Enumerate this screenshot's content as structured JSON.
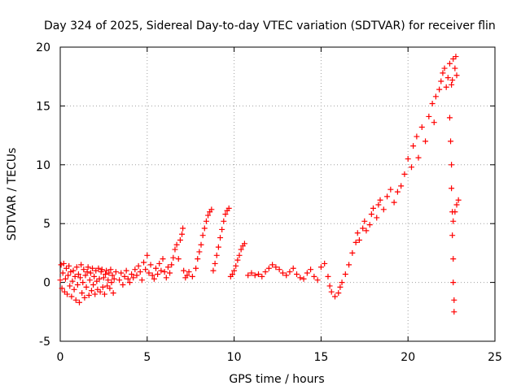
{
  "chart_data": {
    "type": "scatter",
    "title": "Day 324 of 2025, Sidereal Day-to-day VTEC variation (SDTVAR) for receiver flin",
    "xlabel": "GPS time / hours",
    "ylabel": "SDTVAR / TECUs",
    "xlim": [
      0,
      25
    ],
    "ylim": [
      -5,
      20
    ],
    "xticks": [
      0,
      5,
      10,
      15,
      20,
      25
    ],
    "yticks": [
      -5,
      0,
      5,
      10,
      15,
      20
    ],
    "grid": true,
    "marker": "+",
    "color": "#ff0000",
    "series": [
      {
        "points": [
          [
            0.0,
            0.2
          ],
          [
            0.05,
            1.5
          ],
          [
            0.1,
            -0.5
          ],
          [
            0.15,
            0.8
          ],
          [
            0.2,
            1.6
          ],
          [
            0.25,
            -0.8
          ],
          [
            0.3,
            0.3
          ],
          [
            0.35,
            1.2
          ],
          [
            0.4,
            -1.0
          ],
          [
            0.45,
            0.6
          ],
          [
            0.5,
            1.4
          ],
          [
            0.55,
            -0.3
          ],
          [
            0.6,
            0.9
          ],
          [
            0.65,
            -1.2
          ],
          [
            0.7,
            0.1
          ],
          [
            0.75,
            1.0
          ],
          [
            0.8,
            -0.6
          ],
          [
            0.85,
            0.5
          ],
          [
            0.9,
            -1.5
          ],
          [
            0.95,
            1.3
          ],
          [
            1.0,
            -0.2
          ],
          [
            1.05,
            0.7
          ],
          [
            1.1,
            -1.7
          ],
          [
            1.15,
            0.4
          ],
          [
            1.2,
            1.5
          ],
          [
            1.25,
            -0.9
          ],
          [
            1.3,
            0.0
          ],
          [
            1.35,
            1.1
          ],
          [
            1.4,
            -1.3
          ],
          [
            1.45,
            0.6
          ],
          [
            1.5,
            -0.4
          ],
          [
            1.55,
            0.9
          ],
          [
            1.6,
            1.3
          ],
          [
            1.65,
            -1.1
          ],
          [
            1.7,
            0.2
          ],
          [
            1.75,
            0.8
          ],
          [
            1.8,
            -0.7
          ],
          [
            1.85,
            1.2
          ],
          [
            1.9,
            -0.2
          ],
          [
            1.95,
            0.5
          ],
          [
            2.0,
            -1.0
          ],
          [
            2.05,
            1.0
          ],
          [
            2.1,
            0.1
          ],
          [
            2.15,
            -0.6
          ],
          [
            2.2,
            1.2
          ],
          [
            2.25,
            0.3
          ],
          [
            2.3,
            -0.8
          ],
          [
            2.35,
            0.9
          ],
          [
            2.4,
            1.1
          ],
          [
            2.45,
            -0.4
          ],
          [
            2.5,
            0.4
          ],
          [
            2.55,
            -1.0
          ],
          [
            2.6,
            0.7
          ],
          [
            2.65,
            1.0
          ],
          [
            2.7,
            -0.3
          ],
          [
            2.75,
            0.2
          ],
          [
            2.8,
            0.8
          ],
          [
            2.85,
            -0.5
          ],
          [
            2.9,
            1.1
          ],
          [
            2.95,
            0.0
          ],
          [
            3.0,
            0.6
          ],
          [
            3.05,
            -0.9
          ],
          [
            3.1,
            0.3
          ],
          [
            3.2,
            0.9
          ],
          [
            3.4,
            0.2
          ],
          [
            3.5,
            0.8
          ],
          [
            3.6,
            -0.2
          ],
          [
            3.7,
            0.5
          ],
          [
            3.8,
            1.0
          ],
          [
            3.9,
            0.3
          ],
          [
            4.0,
            0.0
          ],
          [
            4.1,
            0.7
          ],
          [
            4.2,
            0.4
          ],
          [
            4.3,
            1.1
          ],
          [
            4.4,
            0.6
          ],
          [
            4.5,
            1.4
          ],
          [
            4.6,
            0.9
          ],
          [
            4.7,
            0.2
          ],
          [
            4.8,
            1.7
          ],
          [
            4.9,
            1.1
          ],
          [
            5.0,
            2.3
          ],
          [
            5.1,
            0.8
          ],
          [
            5.2,
            1.5
          ],
          [
            5.3,
            0.6
          ],
          [
            5.4,
            0.3
          ],
          [
            5.5,
            1.2
          ],
          [
            5.6,
            0.7
          ],
          [
            5.7,
            1.6
          ],
          [
            5.8,
            1.0
          ],
          [
            5.9,
            2.0
          ],
          [
            6.0,
            0.9
          ],
          [
            6.1,
            0.4
          ],
          [
            6.2,
            1.3
          ],
          [
            6.3,
            0.8
          ],
          [
            6.4,
            1.5
          ],
          [
            6.5,
            2.1
          ],
          [
            6.6,
            2.8
          ],
          [
            6.7,
            3.2
          ],
          [
            6.8,
            2.0
          ],
          [
            6.9,
            3.6
          ],
          [
            7.0,
            4.1
          ],
          [
            7.05,
            4.6
          ],
          [
            7.1,
            1.0
          ],
          [
            7.2,
            0.4
          ],
          [
            7.3,
            0.6
          ],
          [
            7.4,
            0.9
          ],
          [
            7.6,
            0.5
          ],
          [
            7.8,
            1.2
          ],
          [
            7.9,
            2.0
          ],
          [
            8.0,
            2.6
          ],
          [
            8.1,
            3.2
          ],
          [
            8.2,
            4.0
          ],
          [
            8.3,
            4.6
          ],
          [
            8.4,
            5.2
          ],
          [
            8.5,
            5.7
          ],
          [
            8.6,
            6.0
          ],
          [
            8.7,
            6.2
          ],
          [
            8.8,
            1.0
          ],
          [
            8.9,
            1.6
          ],
          [
            9.0,
            2.3
          ],
          [
            9.1,
            3.0
          ],
          [
            9.2,
            3.8
          ],
          [
            9.3,
            4.5
          ],
          [
            9.4,
            5.2
          ],
          [
            9.5,
            5.8
          ],
          [
            9.6,
            6.1
          ],
          [
            9.7,
            6.3
          ],
          [
            9.8,
            0.5
          ],
          [
            9.9,
            0.7
          ],
          [
            10.0,
            1.0
          ],
          [
            10.1,
            1.4
          ],
          [
            10.2,
            1.9
          ],
          [
            10.3,
            2.3
          ],
          [
            10.4,
            2.8
          ],
          [
            10.5,
            3.1
          ],
          [
            10.6,
            3.3
          ],
          [
            10.8,
            0.6
          ],
          [
            11.0,
            0.8
          ],
          [
            11.2,
            0.6
          ],
          [
            11.4,
            0.7
          ],
          [
            11.6,
            0.5
          ],
          [
            11.8,
            0.9
          ],
          [
            12.0,
            1.2
          ],
          [
            12.2,
            1.5
          ],
          [
            12.4,
            1.3
          ],
          [
            12.6,
            1.1
          ],
          [
            12.8,
            0.8
          ],
          [
            13.0,
            0.6
          ],
          [
            13.2,
            0.9
          ],
          [
            13.4,
            1.2
          ],
          [
            13.6,
            0.7
          ],
          [
            13.8,
            0.4
          ],
          [
            14.0,
            0.3
          ],
          [
            14.2,
            0.8
          ],
          [
            14.4,
            1.1
          ],
          [
            14.6,
            0.5
          ],
          [
            14.8,
            0.2
          ],
          [
            15.0,
            1.3
          ],
          [
            15.2,
            1.6
          ],
          [
            15.4,
            0.5
          ],
          [
            15.5,
            -0.3
          ],
          [
            15.6,
            -0.8
          ],
          [
            15.8,
            -1.2
          ],
          [
            16.0,
            -0.9
          ],
          [
            16.1,
            -0.4
          ],
          [
            16.2,
            0.0
          ],
          [
            16.4,
            0.7
          ],
          [
            16.6,
            1.5
          ],
          [
            16.8,
            2.5
          ],
          [
            17.0,
            3.4
          ],
          [
            17.1,
            4.2
          ],
          [
            17.2,
            3.6
          ],
          [
            17.4,
            4.6
          ],
          [
            17.5,
            5.2
          ],
          [
            17.6,
            4.4
          ],
          [
            17.8,
            4.9
          ],
          [
            17.9,
            5.8
          ],
          [
            18.0,
            6.3
          ],
          [
            18.2,
            5.5
          ],
          [
            18.3,
            6.6
          ],
          [
            18.4,
            7.0
          ],
          [
            18.6,
            6.2
          ],
          [
            18.8,
            7.3
          ],
          [
            19.0,
            7.9
          ],
          [
            19.2,
            6.8
          ],
          [
            19.4,
            7.7
          ],
          [
            19.6,
            8.2
          ],
          [
            19.8,
            9.2
          ],
          [
            20.0,
            10.5
          ],
          [
            20.2,
            9.8
          ],
          [
            20.3,
            11.6
          ],
          [
            20.5,
            12.4
          ],
          [
            20.6,
            10.6
          ],
          [
            20.8,
            13.2
          ],
          [
            21.0,
            12.0
          ],
          [
            21.2,
            14.1
          ],
          [
            21.4,
            15.2
          ],
          [
            21.5,
            13.6
          ],
          [
            21.6,
            15.8
          ],
          [
            21.8,
            16.4
          ],
          [
            21.9,
            17.1
          ],
          [
            22.0,
            17.8
          ],
          [
            22.1,
            18.2
          ],
          [
            22.2,
            16.6
          ],
          [
            22.3,
            17.4
          ],
          [
            22.4,
            18.6
          ],
          [
            22.5,
            16.8
          ],
          [
            22.55,
            17.2
          ],
          [
            22.6,
            19.0
          ],
          [
            22.7,
            18.2
          ],
          [
            22.75,
            19.2
          ],
          [
            22.8,
            17.6
          ],
          [
            22.4,
            14.0
          ],
          [
            22.45,
            12.0
          ],
          [
            22.5,
            10.0
          ],
          [
            22.5,
            8.0
          ],
          [
            22.55,
            6.0
          ],
          [
            22.55,
            4.0
          ],
          [
            22.6,
            2.0
          ],
          [
            22.6,
            0.0
          ],
          [
            22.65,
            -1.5
          ],
          [
            22.65,
            -2.5
          ],
          [
            22.6,
            5.2
          ],
          [
            22.7,
            6.0
          ],
          [
            22.8,
            6.6
          ],
          [
            22.9,
            7.0
          ]
        ]
      }
    ]
  }
}
